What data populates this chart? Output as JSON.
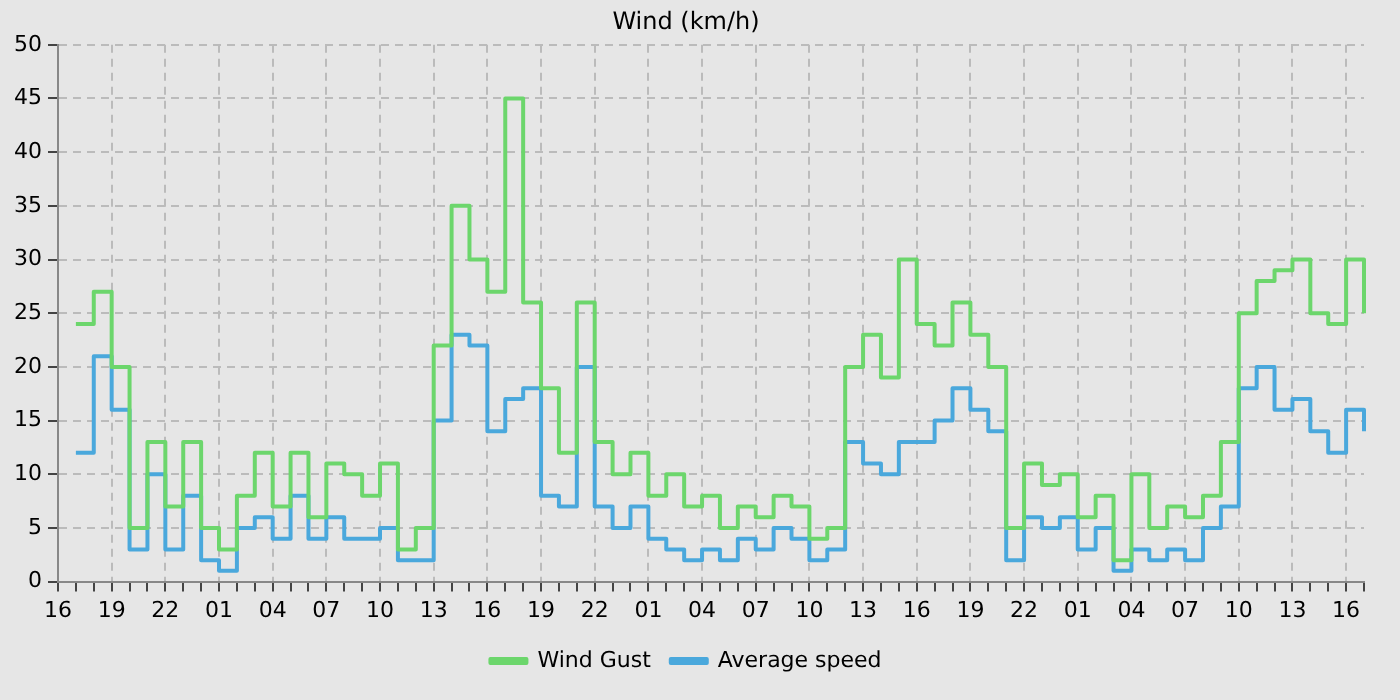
{
  "chart_data": {
    "type": "step",
    "title": "Wind (km/h)",
    "categories": [
      "16",
      null,
      null,
      "19",
      null,
      null,
      "22",
      null,
      null,
      "01",
      null,
      null,
      "04",
      null,
      null,
      "07",
      null,
      null,
      "10",
      null,
      null,
      "13",
      null,
      null,
      "16",
      null,
      null,
      "19",
      null,
      null,
      "22",
      null,
      null,
      "01",
      null,
      null,
      "04",
      null,
      null,
      "07",
      null,
      null,
      "10",
      null,
      null,
      "13",
      null,
      null,
      "16",
      null,
      null,
      "19",
      null,
      null,
      "22",
      null,
      null,
      "01",
      null,
      null,
      "04",
      null,
      null,
      "07",
      null,
      null,
      "10",
      null,
      null,
      "13",
      null,
      null,
      "16",
      null
    ],
    "series": [
      {
        "name": "Wind Gust",
        "color": "#6cd66c",
        "values": [
          null,
          24,
          27,
          20,
          5,
          13,
          7,
          13,
          5,
          3,
          8,
          12,
          7,
          12,
          6,
          11,
          10,
          8,
          11,
          3,
          5,
          22,
          35,
          30,
          27,
          45,
          26,
          18,
          12,
          26,
          13,
          10,
          12,
          8,
          10,
          7,
          8,
          5,
          7,
          6,
          8,
          7,
          4,
          5,
          20,
          23,
          19,
          30,
          24,
          22,
          26,
          23,
          20,
          5,
          11,
          9,
          10,
          6,
          8,
          2,
          10,
          5,
          7,
          6,
          8,
          13,
          25,
          28,
          29,
          30,
          25,
          24,
          30,
          25
        ]
      },
      {
        "name": "Average speed",
        "color": "#4aa8dc",
        "values": [
          null,
          12,
          21,
          16,
          3,
          10,
          3,
          8,
          2,
          1,
          5,
          6,
          4,
          8,
          4,
          6,
          4,
          4,
          5,
          2,
          2,
          15,
          23,
          22,
          14,
          17,
          18,
          8,
          7,
          20,
          7,
          5,
          7,
          4,
          3,
          2,
          3,
          2,
          4,
          3,
          5,
          4,
          2,
          3,
          13,
          11,
          10,
          13,
          13,
          15,
          18,
          16,
          14,
          2,
          6,
          5,
          6,
          3,
          5,
          1,
          3,
          2,
          3,
          2,
          5,
          7,
          18,
          20,
          16,
          17,
          14,
          12,
          16,
          14
        ]
      }
    ],
    "ylim": [
      0,
      50
    ],
    "yticks": [
      0,
      5,
      10,
      15,
      20,
      25,
      30,
      35,
      40,
      45,
      50
    ],
    "grid": true,
    "legend": "bottom",
    "marker": "none"
  }
}
